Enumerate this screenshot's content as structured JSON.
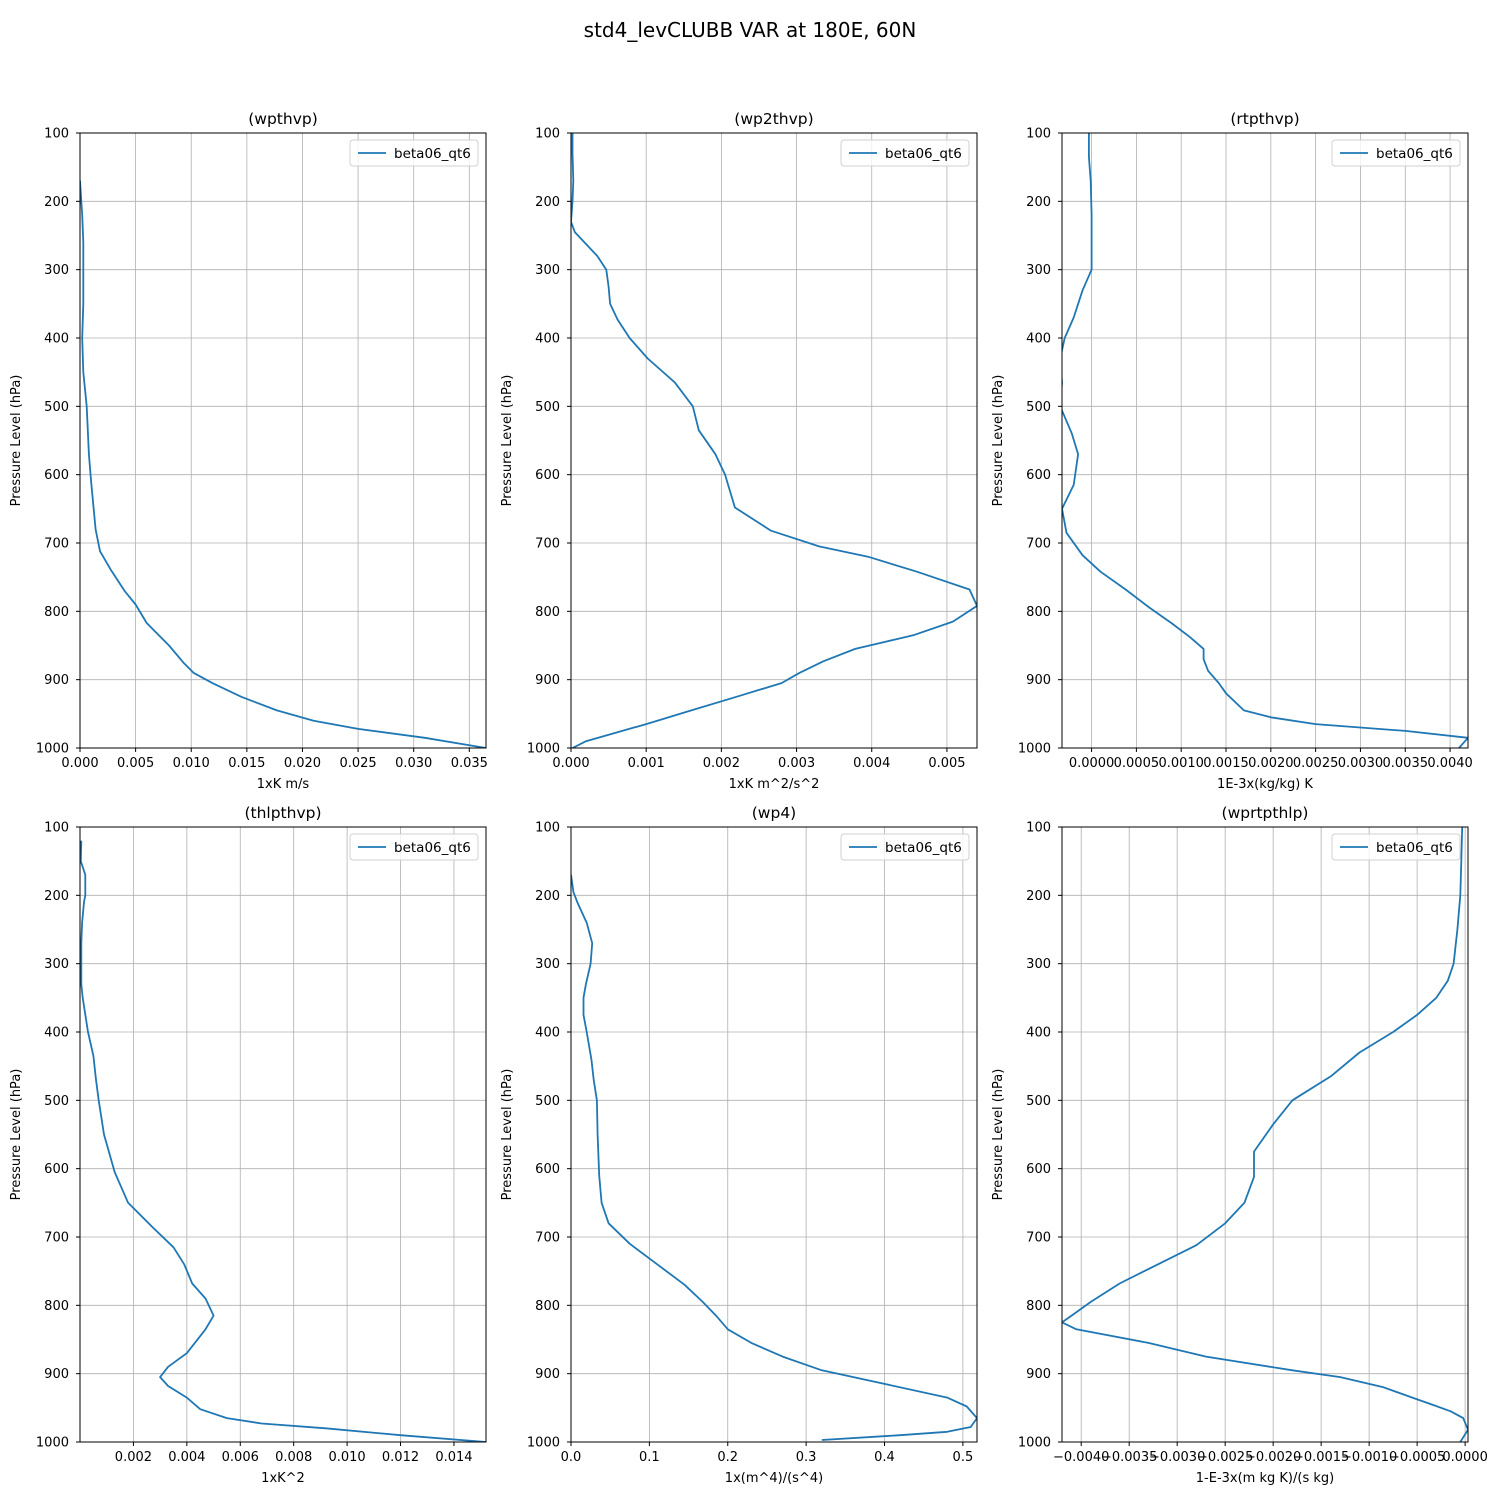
{
  "figure": {
    "title": "std4_levCLUBB VAR at 180E, 60N",
    "series_color": "#1f77b4",
    "grid": true,
    "legend_location": "upper right"
  },
  "chart_data": [
    {
      "type": "line",
      "title": "(wpthvp)",
      "xlabel": "1xK m/s",
      "ylabel": "Pressure Level (hPa)",
      "xlim": [
        0,
        0.0365
      ],
      "ylim": [
        1000,
        100
      ],
      "y_inverted": true,
      "xticks": [
        0,
        0.005,
        0.01,
        0.015,
        0.02,
        0.025,
        0.03,
        0.035
      ],
      "xtick_labels": [
        "0.000",
        "0.005",
        "0.010",
        "0.015",
        "0.020",
        "0.025",
        "0.030",
        "0.035"
      ],
      "yticks": [
        100,
        200,
        300,
        400,
        500,
        600,
        700,
        800,
        900,
        1000
      ],
      "ytick_labels": [
        "100",
        "200",
        "300",
        "400",
        "500",
        "600",
        "700",
        "800",
        "900",
        "1000"
      ],
      "series": [
        {
          "name": "beta06_qt6",
          "x": [
            0.0,
            0.0002,
            0.0003,
            0.0003,
            0.0003,
            0.0002,
            0.0003,
            0.0006,
            0.0008,
            0.001,
            0.0014,
            0.0018,
            0.0028,
            0.004,
            0.005,
            0.006,
            0.008,
            0.0093,
            0.0102,
            0.0119,
            0.0145,
            0.0177,
            0.021,
            0.025,
            0.031,
            0.0365
          ],
          "y": [
            170,
            220,
            260,
            300,
            350,
            400,
            450,
            500,
            570,
            610,
            680,
            712,
            740,
            770,
            790,
            817,
            850,
            875,
            890,
            905,
            925,
            945,
            960,
            972,
            985,
            1000
          ]
        }
      ]
    },
    {
      "type": "line",
      "title": "(wp2thvp)",
      "xlabel": "1xK m^2/s^2",
      "ylabel": "Pressure Level (hPa)",
      "xlim": [
        0,
        0.0054
      ],
      "ylim": [
        1000,
        100
      ],
      "y_inverted": true,
      "xticks": [
        0,
        0.001,
        0.002,
        0.003,
        0.004,
        0.005
      ],
      "xtick_labels": [
        "0.000",
        "0.001",
        "0.002",
        "0.003",
        "0.004",
        "0.005"
      ],
      "yticks": [
        100,
        200,
        300,
        400,
        500,
        600,
        700,
        800,
        900,
        1000
      ],
      "ytick_labels": [
        "100",
        "200",
        "300",
        "400",
        "500",
        "600",
        "700",
        "800",
        "900",
        "1000"
      ],
      "series": [
        {
          "name": "beta06_qt6",
          "x": [
            2e-05,
            2e-05,
            3e-05,
            2e-05,
            0.0,
            5e-05,
            0.00035,
            0.00047,
            0.0005,
            0.00052,
            0.00062,
            0.00078,
            0.00102,
            0.00138,
            0.00162,
            0.0017,
            0.00192,
            0.00205,
            0.00218,
            0.00266,
            0.0033,
            0.00395,
            0.0046,
            0.0053,
            0.0054,
            0.00508,
            0.00455,
            0.00378,
            0.00336,
            0.00304,
            0.0028,
            0.0022,
            0.0016,
            0.001,
            0.0002,
            2e-05
          ],
          "y": [
            100,
            130,
            170,
            200,
            230,
            245,
            280,
            300,
            325,
            350,
            373,
            400,
            430,
            465,
            500,
            535,
            570,
            600,
            648,
            682,
            705,
            720,
            742,
            768,
            792,
            815,
            835,
            855,
            873,
            890,
            905,
            925,
            945,
            965,
            990,
            1000
          ]
        }
      ]
    },
    {
      "type": "line",
      "title": "(rtpthvp)",
      "xlabel": "1E-3x(kg/kg) K",
      "ylabel": "Pressure Level (hPa)",
      "xlim": [
        -0.00033,
        0.0042
      ],
      "ylim": [
        1000,
        100
      ],
      "y_inverted": true,
      "xticks": [
        0.0,
        0.0005,
        0.001,
        0.0015,
        0.002,
        0.0025,
        0.003,
        0.0035,
        0.004
      ],
      "xtick_labels": [
        "0.0000",
        "0.0005",
        "0.0010",
        "0.0015",
        "0.0020",
        "0.0025",
        "0.0030",
        "0.0035",
        "0.0040"
      ],
      "yticks": [
        100,
        200,
        300,
        400,
        500,
        600,
        700,
        800,
        900,
        1000
      ],
      "ytick_labels": [
        "100",
        "200",
        "300",
        "400",
        "500",
        "600",
        "700",
        "800",
        "900",
        "1000"
      ],
      "series": [
        {
          "name": "beta06_qt6",
          "x": [
            -3e-05,
            -3e-05,
            -1e-05,
            0.0,
            0.0,
            0.0,
            -0.0001,
            -0.0002,
            -0.0003,
            -0.00035,
            -0.00033,
            -0.00035,
            -0.00022,
            -0.00015,
            -0.0002,
            -0.00033,
            -0.00028,
            -0.0001,
            0.0001,
            0.00038,
            0.00065,
            0.0009,
            0.0011,
            0.00125,
            0.00125,
            0.0013,
            0.00142,
            0.0015,
            0.0017,
            0.002,
            0.0025,
            0.0035,
            0.0042,
            0.0041
          ],
          "y": [
            100,
            135,
            170,
            220,
            260,
            300,
            330,
            370,
            400,
            430,
            465,
            500,
            540,
            570,
            615,
            650,
            685,
            718,
            742,
            768,
            795,
            818,
            838,
            855,
            870,
            887,
            905,
            920,
            945,
            955,
            965,
            975,
            985,
            1000
          ]
        }
      ]
    },
    {
      "type": "line",
      "title": "(thlpthvp)",
      "xlabel": "1xK^2",
      "ylabel": "Pressure Level (hPa)",
      "xlim": [
        0,
        0.0152
      ],
      "ylim": [
        1000,
        100
      ],
      "y_inverted": true,
      "xticks": [
        0.002,
        0.004,
        0.006,
        0.008,
        0.01,
        0.012,
        0.014
      ],
      "xtick_labels": [
        "0.002",
        "0.004",
        "0.006",
        "0.008",
        "0.010",
        "0.012",
        "0.014"
      ],
      "yticks": [
        100,
        200,
        300,
        400,
        500,
        600,
        700,
        800,
        900,
        1000
      ],
      "ytick_labels": [
        "100",
        "200",
        "300",
        "400",
        "500",
        "600",
        "700",
        "800",
        "900",
        "1000"
      ],
      "series": [
        {
          "name": "beta06_qt6",
          "x": [
            5e-05,
            3e-05,
            0.0002,
            0.0002,
            0.00015,
            8e-05,
            5e-05,
            5e-05,
            5e-05,
            0.0001,
            0.0003,
            0.0005,
            0.0006,
            0.0007,
            0.0009,
            0.0013,
            0.0018,
            0.0027,
            0.0035,
            0.0039,
            0.0042,
            0.0047,
            0.005,
            0.0047,
            0.004,
            0.0033,
            0.003,
            0.0033,
            0.004,
            0.0045,
            0.0055,
            0.0068,
            0.0092,
            0.012,
            0.0152
          ],
          "y": [
            120,
            150,
            170,
            200,
            210,
            240,
            270,
            300,
            330,
            350,
            400,
            435,
            470,
            500,
            550,
            605,
            650,
            685,
            715,
            740,
            768,
            790,
            815,
            835,
            870,
            890,
            905,
            918,
            935,
            952,
            965,
            973,
            980,
            990,
            1000
          ]
        }
      ]
    },
    {
      "type": "line",
      "title": "(wp4)",
      "xlabel": "1x(m^4)/(s^4)",
      "ylabel": "Pressure Level (hPa)",
      "xlim": [
        0,
        0.518
      ],
      "ylim": [
        1000,
        100
      ],
      "y_inverted": true,
      "xticks": [
        0,
        0.1,
        0.2,
        0.3,
        0.4,
        0.5
      ],
      "xtick_labels": [
        "0.0",
        "0.1",
        "0.2",
        "0.3",
        "0.4",
        "0.5"
      ],
      "yticks": [
        100,
        200,
        300,
        400,
        500,
        600,
        700,
        800,
        900,
        1000
      ],
      "ytick_labels": [
        "100",
        "200",
        "300",
        "400",
        "500",
        "600",
        "700",
        "800",
        "900",
        "1000"
      ],
      "series": [
        {
          "name": "beta06_qt6",
          "x": [
            0.0,
            0.003,
            0.008,
            0.02,
            0.027,
            0.025,
            0.019,
            0.016,
            0.016,
            0.02,
            0.026,
            0.029,
            0.033,
            0.034,
            0.036,
            0.039,
            0.048,
            0.075,
            0.11,
            0.145,
            0.168,
            0.185,
            0.2,
            0.23,
            0.27,
            0.32,
            0.4,
            0.48,
            0.505,
            0.518,
            0.51,
            0.48,
            0.42,
            0.32
          ],
          "y": [
            170,
            195,
            210,
            240,
            270,
            300,
            330,
            350,
            375,
            400,
            440,
            470,
            500,
            550,
            610,
            650,
            680,
            710,
            740,
            770,
            795,
            815,
            835,
            855,
            875,
            895,
            915,
            935,
            948,
            965,
            978,
            985,
            990,
            997
          ]
        }
      ]
    },
    {
      "type": "line",
      "title": "(wprtpthlp)",
      "xlabel": "1-E-3x(m kg K)/(s kg)",
      "ylabel": "Pressure Level (hPa)",
      "xlim": [
        -0.0042,
        3e-05
      ],
      "ylim": [
        1000,
        100
      ],
      "y_inverted": true,
      "xticks": [
        -0.004,
        -0.0035,
        -0.003,
        -0.0025,
        -0.002,
        -0.0015,
        -0.001,
        -0.0005,
        0.0
      ],
      "xtick_labels": [
        "−0.0040",
        "−0.0035",
        "−0.0030",
        "−0.0025",
        "−0.0020",
        "−0.0015",
        "−0.0010",
        "−0.0005",
        "0.0000"
      ],
      "yticks": [
        100,
        200,
        300,
        400,
        500,
        600,
        700,
        800,
        900,
        1000
      ],
      "ytick_labels": [
        "100",
        "200",
        "300",
        "400",
        "500",
        "600",
        "700",
        "800",
        "900",
        "1000"
      ],
      "series": [
        {
          "name": "beta06_qt6",
          "x": [
            -3e-05,
            -4e-05,
            -5e-05,
            -8e-05,
            -0.00012,
            -0.00018,
            -0.0003,
            -0.0005,
            -0.00075,
            -0.0011,
            -0.0014,
            -0.0018,
            -0.002,
            -0.0022,
            -0.0022,
            -0.0023,
            -0.0025,
            -0.0028,
            -0.0032,
            -0.0036,
            -0.0039,
            -0.0041,
            -0.0042,
            -0.00405,
            -0.0033,
            -0.0027,
            -0.0018,
            -0.0013,
            -0.00085,
            -0.00055,
            -0.00035,
            -0.00015,
            -2e-05,
            3e-05,
            -5e-05
          ],
          "y": [
            100,
            150,
            200,
            250,
            300,
            325,
            350,
            375,
            400,
            430,
            465,
            500,
            535,
            575,
            612,
            650,
            680,
            712,
            740,
            768,
            795,
            815,
            825,
            835,
            855,
            875,
            895,
            905,
            920,
            935,
            945,
            955,
            965,
            982,
            1000
          ]
        }
      ]
    }
  ]
}
